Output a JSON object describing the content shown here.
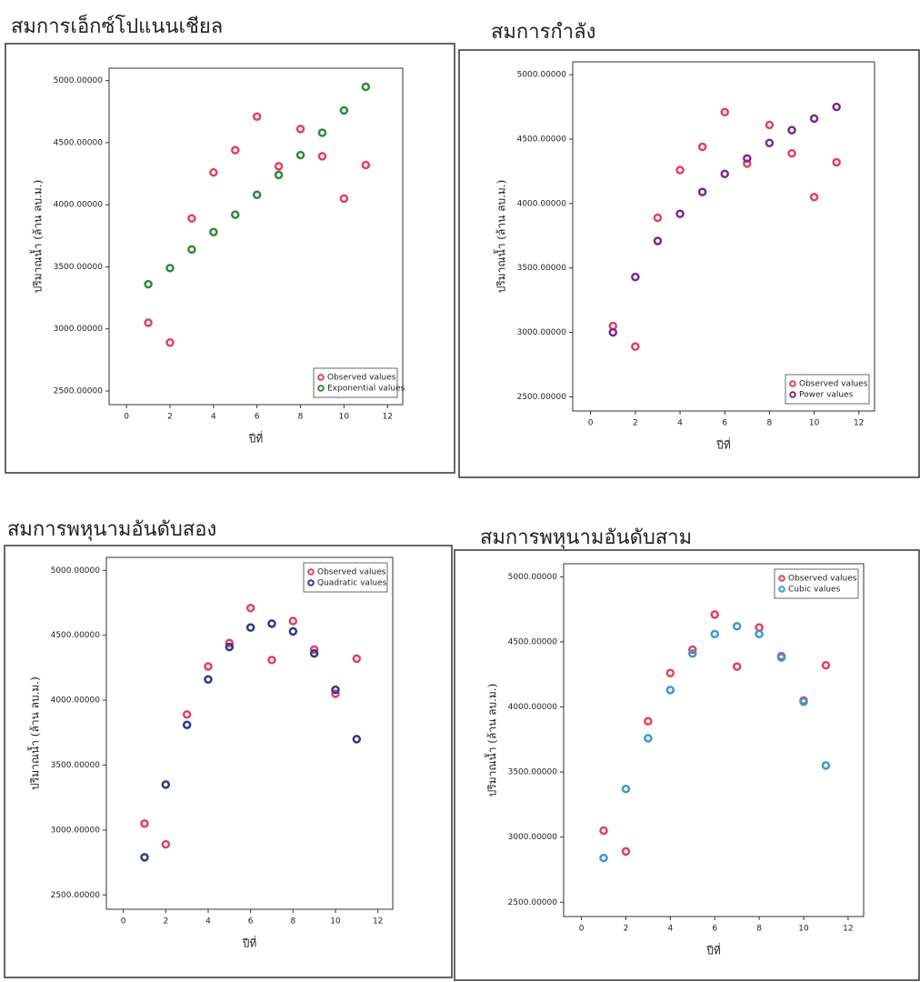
{
  "chart_data": [
    {
      "type": "scatter",
      "title": "สมการเอ็กซ์โปแนนเชียล",
      "xlabel": "ปีที่",
      "ylabel": "ปริมาณน้ำ (ล้าน ลบ.ม.)",
      "x": [
        1,
        2,
        3,
        4,
        5,
        6,
        7,
        8,
        9,
        10,
        11
      ],
      "series": [
        {
          "name": "Observed values",
          "color": "#e4405f",
          "values": [
            3050,
            2890,
            3890,
            4260,
            4440,
            4710,
            4310,
            4610,
            4390,
            4050,
            4320
          ]
        },
        {
          "name": "Exponential values",
          "color": "#2e8b3e",
          "values": [
            3360,
            3490,
            3640,
            3780,
            3920,
            4080,
            4240,
            4400,
            4580,
            4760,
            4950
          ]
        }
      ],
      "xlim": [
        -0.8,
        12.7
      ],
      "ylim": [
        2390,
        5100
      ],
      "xticks": [
        0,
        2,
        4,
        6,
        8,
        10,
        12
      ],
      "yticks": [
        {
          "value": 2500,
          "label": "2500.00000"
        },
        {
          "value": 3000,
          "label": "3000.00000"
        },
        {
          "value": 3500,
          "label": "3500.00000"
        },
        {
          "value": 4000,
          "label": "4000.00000"
        },
        {
          "value": 4500,
          "label": "4500.00000"
        },
        {
          "value": 5000,
          "label": "5000.00000"
        }
      ],
      "legend": "lower right"
    },
    {
      "type": "scatter",
      "title": "สมการกำลัง",
      "xlabel": "ปีที่",
      "ylabel": "ปริมาณน้ำ (ล้าน ลบ.ม.)",
      "x": [
        1,
        2,
        3,
        4,
        5,
        6,
        7,
        8,
        9,
        10,
        11
      ],
      "series": [
        {
          "name": "Observed values",
          "color": "#e4405f",
          "values": [
            3050,
            2890,
            3890,
            4260,
            4440,
            4710,
            4310,
            4610,
            4390,
            4050,
            4320
          ]
        },
        {
          "name": "Power values",
          "color": "#7b2a8c",
          "values": [
            3000,
            3430,
            3710,
            3920,
            4090,
            4230,
            4350,
            4470,
            4570,
            4660,
            4750
          ]
        }
      ],
      "xlim": [
        -0.8,
        12.7
      ],
      "ylim": [
        2390,
        5100
      ],
      "xticks": [
        0,
        2,
        4,
        6,
        8,
        10,
        12
      ],
      "yticks": [
        {
          "value": 2500,
          "label": "2500.00000"
        },
        {
          "value": 3000,
          "label": "3000.00000"
        },
        {
          "value": 3500,
          "label": "3500.00000"
        },
        {
          "value": 4000,
          "label": "4000.00000"
        },
        {
          "value": 4500,
          "label": "4500.00000"
        },
        {
          "value": 5000,
          "label": "5000.00000"
        }
      ],
      "legend": "lower right"
    },
    {
      "type": "scatter",
      "title": "สมการพหุนามอันดับสอง",
      "xlabel": "ปีที่",
      "ylabel": "ปริมาณน้ำ (ล้าน ลบ.ม.)",
      "x": [
        1,
        2,
        3,
        4,
        5,
        6,
        7,
        8,
        9,
        10,
        11
      ],
      "series": [
        {
          "name": "Observed values",
          "color": "#e4405f",
          "values": [
            3050,
            2890,
            3890,
            4260,
            4440,
            4710,
            4310,
            4610,
            4390,
            4050,
            4320
          ]
        },
        {
          "name": "Quadratic values",
          "color": "#2a3a8c",
          "values": [
            2790,
            3350,
            3810,
            4160,
            4410,
            4560,
            4590,
            4530,
            4360,
            4080,
            3700
          ]
        }
      ],
      "xlim": [
        -0.8,
        12.7
      ],
      "ylim": [
        2390,
        5100
      ],
      "xticks": [
        0,
        2,
        4,
        6,
        8,
        10,
        12
      ],
      "yticks": [
        {
          "value": 2500,
          "label": "2500.00000"
        },
        {
          "value": 3000,
          "label": "3000.00000"
        },
        {
          "value": 3500,
          "label": "3500.00000"
        },
        {
          "value": 4000,
          "label": "4000.00000"
        },
        {
          "value": 4500,
          "label": "4500.00000"
        },
        {
          "value": 5000,
          "label": "5000.00000"
        }
      ],
      "legend": "upper right"
    },
    {
      "type": "scatter",
      "title": "สมการพหุนามอันดับสาม",
      "xlabel": "ปีที่",
      "ylabel": "ปริมาณน้ำ (ล้าน ลบ.ม.)",
      "x": [
        1,
        2,
        3,
        4,
        5,
        6,
        7,
        8,
        9,
        10,
        11
      ],
      "series": [
        {
          "name": "Observed values",
          "color": "#e4405f",
          "values": [
            3050,
            2890,
            3890,
            4260,
            4440,
            4710,
            4310,
            4610,
            4390,
            4050,
            4320
          ]
        },
        {
          "name": "Cubic values",
          "color": "#3a9ac8",
          "values": [
            2840,
            3370,
            3760,
            4130,
            4410,
            4560,
            4620,
            4560,
            4380,
            4040,
            3550
          ]
        }
      ],
      "xlim": [
        -0.8,
        12.7
      ],
      "ylim": [
        2390,
        5100
      ],
      "xticks": [
        0,
        2,
        4,
        6,
        8,
        10,
        12
      ],
      "yticks": [
        {
          "value": 2500,
          "label": "2500.00000"
        },
        {
          "value": 3000,
          "label": "3000.00000"
        },
        {
          "value": 3500,
          "label": "3500.00000"
        },
        {
          "value": 4000,
          "label": "4000.00000"
        },
        {
          "value": 4500,
          "label": "4500.00000"
        },
        {
          "value": 5000,
          "label": "5000.00000"
        }
      ],
      "legend": "upper right"
    }
  ]
}
